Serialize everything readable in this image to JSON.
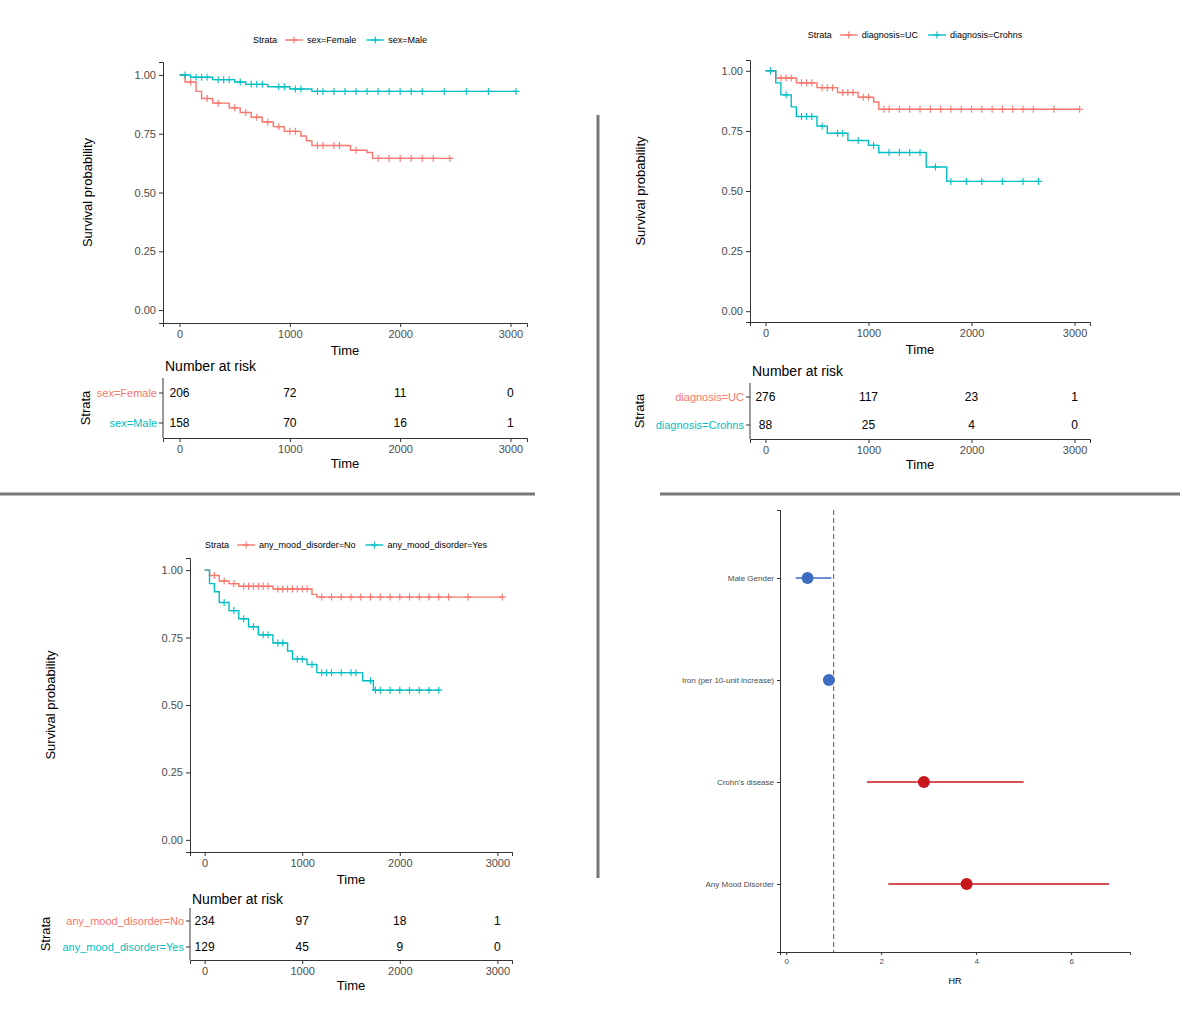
{
  "chart_data": [
    {
      "type": "km",
      "legend_title": "Strata",
      "legend": "top",
      "x_label": "Time",
      "y_label": "Survival probability",
      "xlim": [
        -150,
        3150
      ],
      "xticks": [
        0,
        1000,
        2000,
        3000
      ],
      "ylim": [
        -0.055,
        1.055
      ],
      "yticks": [
        {
          "value": 0,
          "label": "0.00"
        },
        {
          "value": 0.25,
          "label": "0.25"
        },
        {
          "value": 0.5,
          "label": "0.50"
        },
        {
          "value": 0.75,
          "label": "0.75"
        },
        {
          "value": 1,
          "label": "1.00"
        }
      ],
      "series": [
        {
          "name": "sex=Female",
          "color": "#F8766D",
          "x": [
            0,
            50,
            150,
            200,
            300,
            450,
            550,
            650,
            750,
            850,
            950,
            1100,
            1150,
            1200,
            1550,
            1700,
            1750,
            2450
          ],
          "y": [
            1,
            0.97,
            0.93,
            0.9,
            0.88,
            0.86,
            0.84,
            0.82,
            0.8,
            0.78,
            0.76,
            0.74,
            0.72,
            0.7,
            0.68,
            0.67,
            0.645,
            0.645
          ],
          "censored": [
            100,
            250,
            350,
            500,
            600,
            700,
            800,
            900,
            1000,
            1050,
            1250,
            1300,
            1400,
            1450,
            1600,
            1800,
            1900,
            2000,
            2100,
            2200,
            2300,
            2450
          ]
        },
        {
          "name": "sex=Male",
          "color": "#00BFC4",
          "x": [
            0,
            100,
            300,
            500,
            600,
            800,
            1000,
            1200,
            3050
          ],
          "y": [
            1,
            0.99,
            0.98,
            0.97,
            0.96,
            0.95,
            0.94,
            0.93,
            0.93
          ],
          "censored": [
            50,
            150,
            200,
            250,
            350,
            400,
            450,
            550,
            650,
            700,
            750,
            900,
            950,
            1050,
            1100,
            1250,
            1300,
            1400,
            1500,
            1600,
            1700,
            1800,
            1900,
            2000,
            2100,
            2200,
            2400,
            2600,
            2800,
            3050
          ]
        }
      ],
      "risk_table": {
        "title": "Number at risk",
        "y_label": "Strata",
        "x_label": "Time",
        "times": [
          0,
          1000,
          2000,
          3000
        ],
        "rows": [
          {
            "name": "sex=Female",
            "values": [
              206,
              72,
              11,
              0
            ]
          },
          {
            "name": "sex=Male",
            "values": [
              158,
              70,
              16,
              1
            ]
          }
        ]
      }
    },
    {
      "type": "km",
      "legend_title": "Strata",
      "legend": "top",
      "x_label": "Time",
      "y_label": "Survival probability",
      "xlim": [
        -150,
        3150
      ],
      "xticks": [
        0,
        1000,
        2000,
        3000
      ],
      "ylim": [
        -0.045,
        1.045
      ],
      "yticks": [
        {
          "value": 0,
          "label": "0.00"
        },
        {
          "value": 0.25,
          "label": "0.25"
        },
        {
          "value": 0.5,
          "label": "0.50"
        },
        {
          "value": 0.75,
          "label": "0.75"
        },
        {
          "value": 1,
          "label": "1.00"
        }
      ],
      "series": [
        {
          "name": "diagnosis=UC",
          "color": "#F8766D",
          "x": [
            0,
            100,
            300,
            500,
            700,
            900,
            1050,
            1100,
            3050
          ],
          "y": [
            1,
            0.97,
            0.95,
            0.93,
            0.91,
            0.89,
            0.87,
            0.84,
            0.84
          ],
          "censored": [
            50,
            150,
            200,
            250,
            350,
            400,
            450,
            550,
            600,
            650,
            750,
            800,
            850,
            950,
            1000,
            1150,
            1200,
            1300,
            1400,
            1500,
            1600,
            1700,
            1800,
            1900,
            2000,
            2100,
            2200,
            2300,
            2400,
            2500,
            2600,
            2800,
            3050
          ]
        },
        {
          "name": "diagnosis=Crohns",
          "color": "#00BFC4",
          "x": [
            0,
            100,
            150,
            250,
            300,
            500,
            600,
            800,
            1000,
            1100,
            1560,
            1760,
            2650
          ],
          "y": [
            1,
            0.95,
            0.9,
            0.85,
            0.81,
            0.77,
            0.74,
            0.71,
            0.69,
            0.66,
            0.6,
            0.54,
            0.54
          ],
          "censored": [
            50,
            200,
            350,
            400,
            450,
            550,
            700,
            750,
            900,
            1050,
            1200,
            1300,
            1400,
            1500,
            1650,
            1800,
            1950,
            2100,
            2300,
            2500,
            2650
          ]
        }
      ],
      "risk_table": {
        "title": "Number at risk",
        "y_label": "Strata",
        "x_label": "Time",
        "times": [
          0,
          1000,
          2000,
          3000
        ],
        "rows": [
          {
            "name": "diagnosis=UC",
            "values": [
              276,
              117,
              23,
              1
            ]
          },
          {
            "name": "diagnosis=Crohns",
            "values": [
              88,
              25,
              4,
              0
            ]
          }
        ]
      }
    },
    {
      "type": "km",
      "legend_title": "Strata",
      "legend": "top",
      "x_label": "Time",
      "y_label": "Survival probability",
      "xlim": [
        -150,
        3150
      ],
      "xticks": [
        0,
        1000,
        2000,
        3000
      ],
      "ylim": [
        -0.045,
        1.045
      ],
      "yticks": [
        {
          "value": 0,
          "label": "0.00"
        },
        {
          "value": 0.25,
          "label": "0.25"
        },
        {
          "value": 0.5,
          "label": "0.50"
        },
        {
          "value": 0.75,
          "label": "0.75"
        },
        {
          "value": 1,
          "label": "1.00"
        }
      ],
      "series": [
        {
          "name": "any_mood_disorder=No",
          "color": "#F8766D",
          "x": [
            0,
            50,
            150,
            250,
            350,
            700,
            1100,
            1150,
            3050
          ],
          "y": [
            1,
            0.98,
            0.96,
            0.95,
            0.94,
            0.93,
            0.91,
            0.9,
            0.9
          ],
          "censored": [
            100,
            200,
            300,
            400,
            450,
            500,
            550,
            600,
            650,
            750,
            800,
            850,
            900,
            950,
            1000,
            1050,
            1200,
            1300,
            1400,
            1500,
            1600,
            1700,
            1800,
            1900,
            2000,
            2100,
            2200,
            2300,
            2400,
            2500,
            2700,
            3050
          ]
        },
        {
          "name": "any_mood_disorder=Yes",
          "color": "#00BFC4",
          "x": [
            0,
            50,
            100,
            150,
            250,
            350,
            450,
            550,
            700,
            850,
            900,
            1050,
            1150,
            1620,
            1730,
            2400
          ],
          "y": [
            1,
            0.95,
            0.92,
            0.88,
            0.85,
            0.82,
            0.79,
            0.76,
            0.73,
            0.7,
            0.67,
            0.65,
            0.62,
            0.59,
            0.555,
            0.555
          ],
          "censored": [
            200,
            300,
            400,
            500,
            600,
            650,
            750,
            800,
            950,
            1000,
            1100,
            1200,
            1250,
            1300,
            1400,
            1500,
            1550,
            1700,
            1750,
            1800,
            1900,
            2000,
            2100,
            2200,
            2300,
            2400
          ]
        }
      ],
      "risk_table": {
        "title": "Number at risk",
        "y_label": "Strata",
        "x_label": "Time",
        "times": [
          0,
          1000,
          2000,
          3000
        ],
        "rows": [
          {
            "name": "any_mood_disorder=No",
            "values": [
              234,
              97,
              18,
              1
            ]
          },
          {
            "name": "any_mood_disorder=Yes",
            "values": [
              129,
              45,
              9,
              0
            ]
          }
        ]
      }
    },
    {
      "type": "forest",
      "orientation": "horizontal",
      "x_label": "HR",
      "categories": [
        "Male Gender",
        "Iron (per 10-unit increase)",
        "Crohn's disease",
        "Any Mood Disorder"
      ],
      "values": [
        0.45,
        0.9,
        2.9,
        3.8
      ],
      "ci_low": [
        0.2,
        0.82,
        1.7,
        2.15
      ],
      "ci_high": [
        0.95,
        0.97,
        5.0,
        6.8
      ],
      "colors": [
        "#3d6cc0",
        "#3d6cc0",
        "#c8161d",
        "#c8161d"
      ],
      "reference_line": 1,
      "xlim": [
        -0.13,
        7.24
      ],
      "xticks": [
        0,
        2,
        4,
        6
      ]
    }
  ]
}
